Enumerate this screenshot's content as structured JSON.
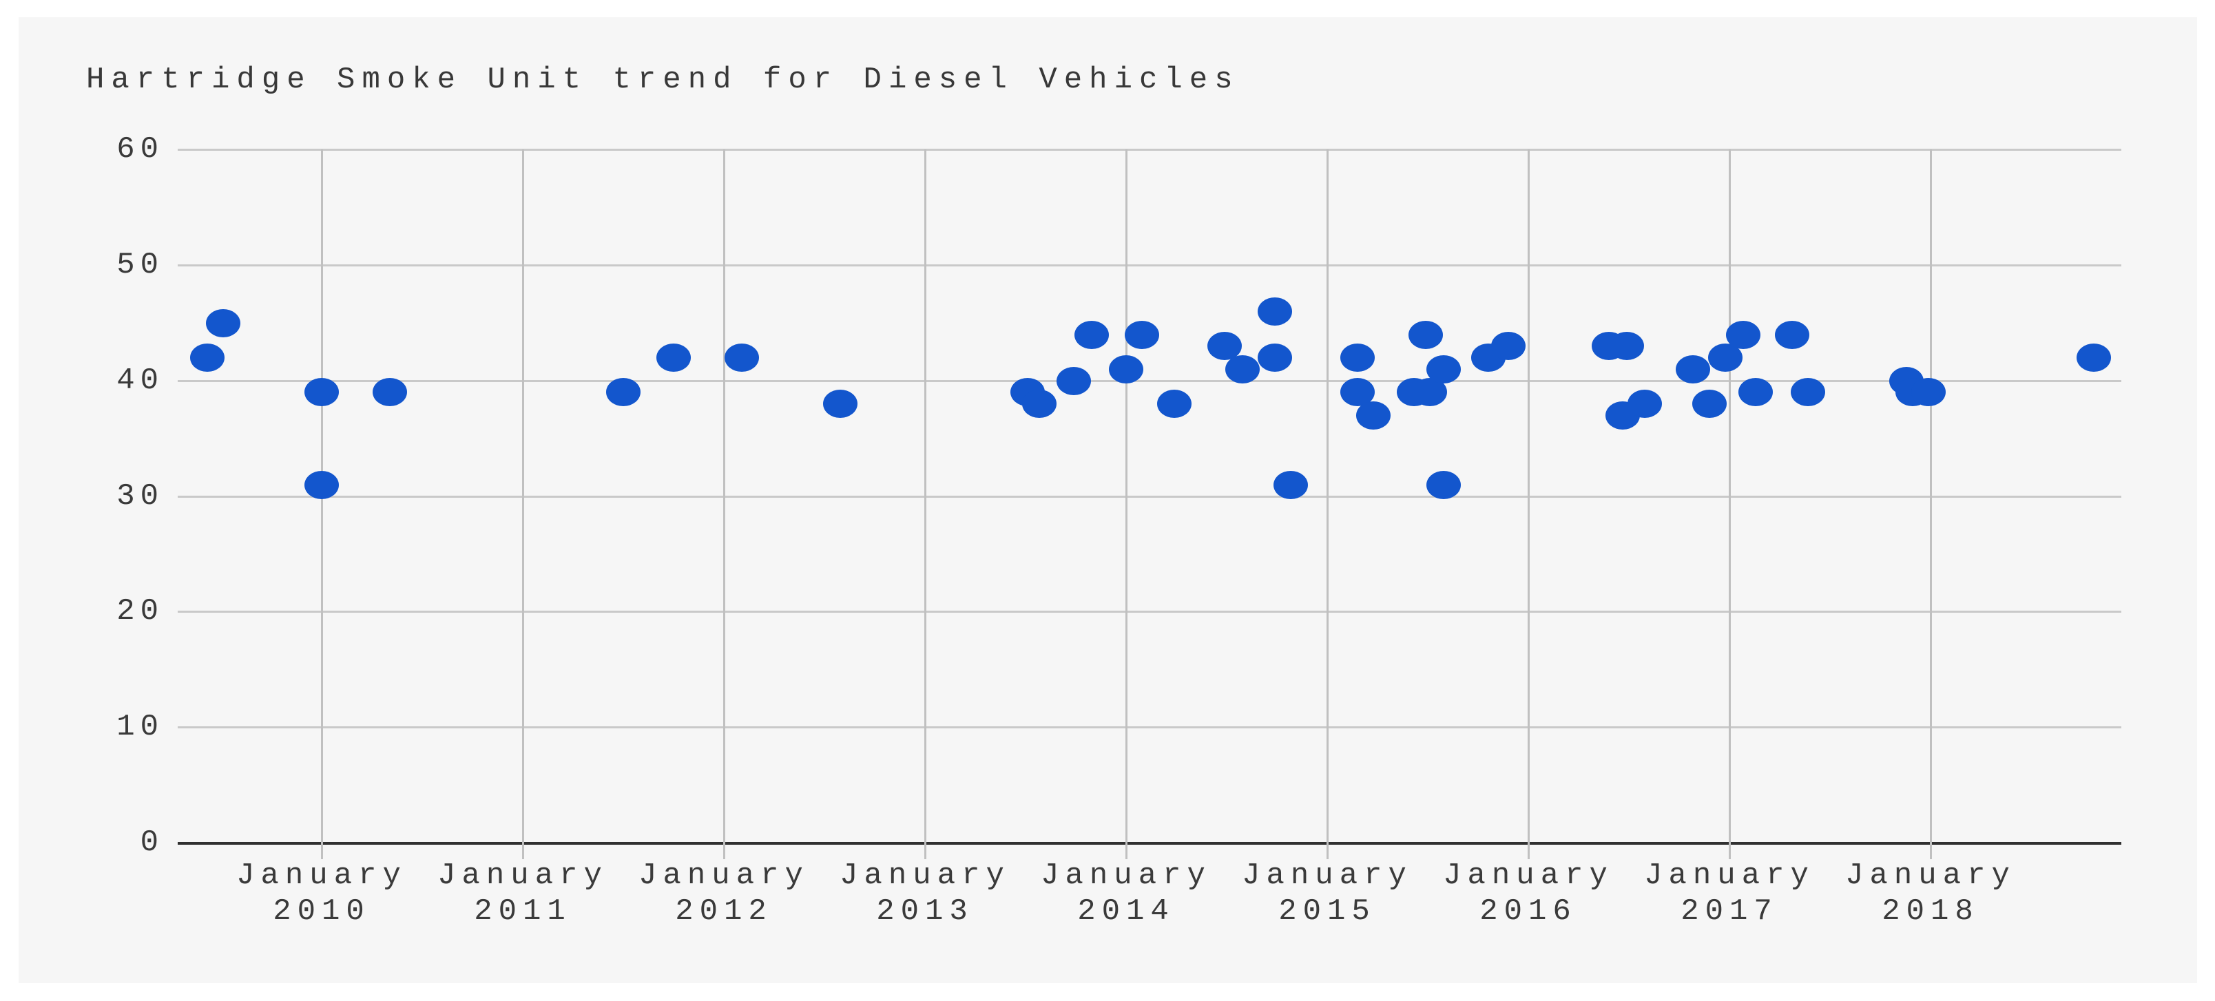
{
  "window": {
    "background": "#ffffff",
    "panel_background": "#f6f6f6"
  },
  "styles": {
    "grid_color": "#c9c9c9",
    "vertical_grid_color": "#c0c0c0",
    "baseline_color": "#303030",
    "text_color": "#3a3a3a",
    "title_color": "#383838"
  },
  "chart_data": {
    "type": "scatter",
    "title": "Hartridge Smoke Unit trend for Diesel Vehicles",
    "xlabel": "",
    "ylabel": "",
    "legend_position": "none",
    "grid": true,
    "point_color": "#1356cd",
    "y_axis": {
      "range": [
        0,
        60
      ],
      "ticks": [
        "0",
        "10",
        "20",
        "30",
        "40",
        "50",
        "60"
      ]
    },
    "x_axis": {
      "tick_month": "January",
      "tick_years": [
        "2010",
        "2011",
        "2012",
        "2013",
        "2014",
        "2015",
        "2016",
        "2017",
        "2018"
      ]
    },
    "x_range_years": [
      2009.27,
      2018.95
    ],
    "points": [
      {
        "date": "2009-06",
        "x": 2009.43,
        "y": 42
      },
      {
        "date": "2009-07",
        "x": 2009.51,
        "y": 45
      },
      {
        "date": "2010-01",
        "x": 2010.0,
        "y": 39
      },
      {
        "date": "2010-01",
        "x": 2010.0,
        "y": 31
      },
      {
        "date": "2010-05",
        "x": 2010.34,
        "y": 39
      },
      {
        "date": "2011-07",
        "x": 2011.5,
        "y": 39
      },
      {
        "date": "2011-10",
        "x": 2011.75,
        "y": 42
      },
      {
        "date": "2012-02",
        "x": 2012.09,
        "y": 42
      },
      {
        "date": "2012-08",
        "x": 2012.58,
        "y": 38
      },
      {
        "date": "2013-07",
        "x": 2013.51,
        "y": 39
      },
      {
        "date": "2013-08",
        "x": 2013.57,
        "y": 38
      },
      {
        "date": "2013-10",
        "x": 2013.74,
        "y": 40
      },
      {
        "date": "2013-11",
        "x": 2013.83,
        "y": 44
      },
      {
        "date": "2014-01",
        "x": 2014.0,
        "y": 41
      },
      {
        "date": "2014-02",
        "x": 2014.08,
        "y": 44
      },
      {
        "date": "2014-03",
        "x": 2014.24,
        "y": 38
      },
      {
        "date": "2014-07",
        "x": 2014.49,
        "y": 43
      },
      {
        "date": "2014-08",
        "x": 2014.58,
        "y": 41
      },
      {
        "date": "2014-10",
        "x": 2014.74,
        "y": 46
      },
      {
        "date": "2014-10",
        "x": 2014.74,
        "y": 42
      },
      {
        "date": "2014-11",
        "x": 2014.82,
        "y": 31
      },
      {
        "date": "2015-02",
        "x": 2015.15,
        "y": 42
      },
      {
        "date": "2015-02",
        "x": 2015.15,
        "y": 39
      },
      {
        "date": "2015-03",
        "x": 2015.23,
        "y": 37
      },
      {
        "date": "2015-06",
        "x": 2015.43,
        "y": 39
      },
      {
        "date": "2015-07",
        "x": 2015.51,
        "y": 39
      },
      {
        "date": "2015-07",
        "x": 2015.49,
        "y": 44
      },
      {
        "date": "2015-08",
        "x": 2015.58,
        "y": 41
      },
      {
        "date": "2015-08",
        "x": 2015.58,
        "y": 31
      },
      {
        "date": "2015-10",
        "x": 2015.8,
        "y": 42
      },
      {
        "date": "2015-12",
        "x": 2015.9,
        "y": 43
      },
      {
        "date": "2016-05",
        "x": 2016.4,
        "y": 43
      },
      {
        "date": "2016-06",
        "x": 2016.47,
        "y": 37
      },
      {
        "date": "2016-07",
        "x": 2016.49,
        "y": 43
      },
      {
        "date": "2016-08",
        "x": 2016.58,
        "y": 38
      },
      {
        "date": "2016-11",
        "x": 2016.82,
        "y": 41
      },
      {
        "date": "2016-12",
        "x": 2016.9,
        "y": 38
      },
      {
        "date": "2017-01",
        "x": 2016.98,
        "y": 42
      },
      {
        "date": "2017-02",
        "x": 2017.07,
        "y": 44
      },
      {
        "date": "2017-03",
        "x": 2017.13,
        "y": 39
      },
      {
        "date": "2017-05",
        "x": 2017.31,
        "y": 44
      },
      {
        "date": "2017-06",
        "x": 2017.39,
        "y": 39
      },
      {
        "date": "2017-11",
        "x": 2017.88,
        "y": 40
      },
      {
        "date": "2017-12",
        "x": 2017.91,
        "y": 39
      },
      {
        "date": "2018-01",
        "x": 2017.99,
        "y": 39
      },
      {
        "date": "2018-11",
        "x": 2018.81,
        "y": 42
      }
    ]
  }
}
